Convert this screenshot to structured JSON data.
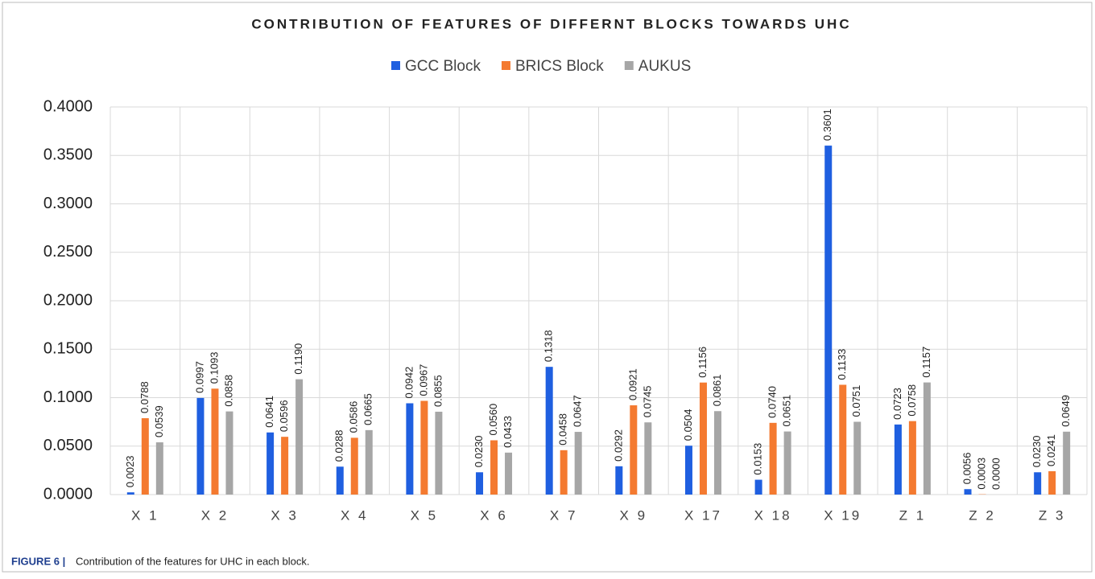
{
  "chart_data": {
    "type": "bar",
    "title": "CONTRIBUTION OF FEATURES OF DIFFERNT BLOCKS TOWARDS UHC",
    "categories": [
      "X 1",
      "X 2",
      "X 3",
      "X 4",
      "X 5",
      "X 6",
      "X 7",
      "X 9",
      "X 17",
      "X 18",
      "X 19",
      "Z 1",
      "Z 2",
      "Z 3"
    ],
    "series": [
      {
        "name": "GCC Block",
        "color": "#1f5fe0",
        "values": [
          0.0023,
          0.0997,
          0.0641,
          0.0288,
          0.0942,
          0.023,
          0.1318,
          0.0292,
          0.0504,
          0.0153,
          0.3601,
          0.0723,
          0.0056,
          0.023
        ],
        "value_labels": [
          "0.0023",
          "0.0997",
          "0.0641",
          "0.0288",
          "0.0942",
          "0.0230",
          "0.1318",
          "0.0292",
          "0.0504",
          "0.0153",
          "0.3601",
          "0.0723",
          "0.0056",
          "0.0230"
        ]
      },
      {
        "name": "BRICS Block",
        "color": "#f47a30",
        "values": [
          0.0788,
          0.1093,
          0.0596,
          0.0586,
          0.0967,
          0.056,
          0.0458,
          0.0921,
          0.1156,
          0.074,
          0.1133,
          0.0758,
          0.0003,
          0.0241
        ],
        "value_labels": [
          "0.0788",
          "0.1093",
          "0.0596",
          "0.0586",
          "0.0967",
          "0.0560",
          "0.0458",
          "0.0921",
          "0.1156",
          "0.0740",
          "0.1133",
          "0.0758",
          "0.0003",
          "0.0241"
        ]
      },
      {
        "name": "AUKUS",
        "color": "#a6a6a6",
        "values": [
          0.0539,
          0.0858,
          0.119,
          0.0665,
          0.0855,
          0.0433,
          0.0647,
          0.0745,
          0.0861,
          0.0651,
          0.0751,
          0.1157,
          0.0,
          0.0649
        ],
        "value_labels": [
          "0.0539",
          "0.0858",
          "0.1190",
          "0.0665",
          "0.0855",
          "0.0433",
          "0.0647",
          "0.0745",
          "0.0861",
          "0.0651",
          "0.0751",
          "0.1157",
          "0.0000",
          "0.0649"
        ]
      }
    ],
    "ylim": [
      0,
      0.4
    ],
    "yticks": [
      {
        "value": 0,
        "label": "0.0000"
      },
      {
        "value": 0.05,
        "label": "0.0500"
      },
      {
        "value": 0.1,
        "label": "0.1000"
      },
      {
        "value": 0.15,
        "label": "0.1500"
      },
      {
        "value": 0.2,
        "label": "0.2000"
      },
      {
        "value": 0.25,
        "label": "0.2500"
      },
      {
        "value": 0.3,
        "label": "0.3000"
      },
      {
        "value": 0.35,
        "label": "0.3500"
      },
      {
        "value": 0.4,
        "label": "0.4000"
      }
    ],
    "grid": true,
    "legend": "top"
  },
  "caption": {
    "label": "FIGURE 6 |",
    "text": "Contribution of the features for UHC in each block."
  }
}
